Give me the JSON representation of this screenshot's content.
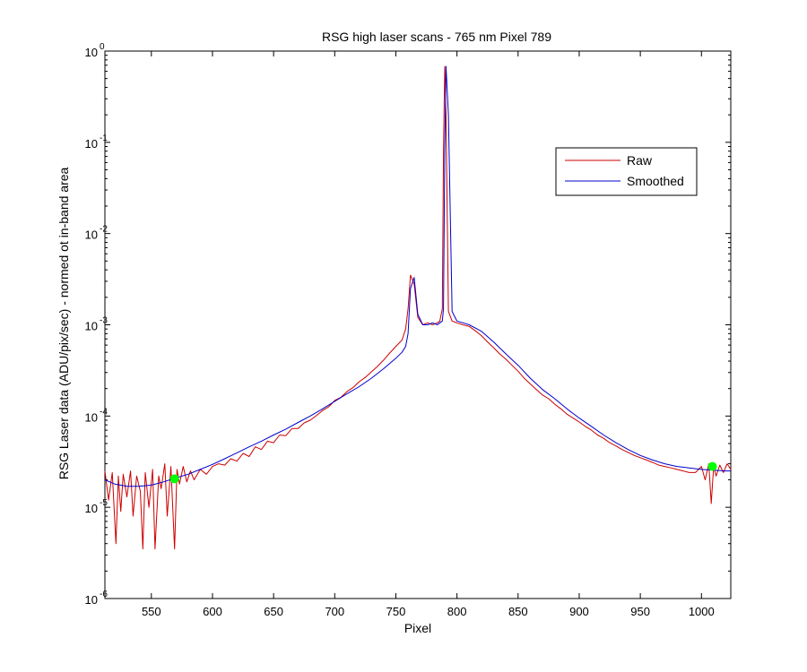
{
  "chart_data": {
    "type": "line",
    "title": "RSG high laser scans  - 765 nm    Pixel 789",
    "xlabel": "Pixel",
    "ylabel": "RSG Laser data (ADU/pix/sec) - normed ot in-band area",
    "xlim": [
      512,
      1024
    ],
    "ylim": [
      1e-06,
      1
    ],
    "yscale": "log",
    "grid": false,
    "legend_position": "top-right",
    "x_ticks": [
      550,
      600,
      650,
      700,
      750,
      800,
      850,
      900,
      950,
      1000
    ],
    "y_ticks": [
      {
        "value": 1e-06,
        "base": "10",
        "exp": "-6"
      },
      {
        "value": 1e-05,
        "base": "10",
        "exp": "-5"
      },
      {
        "value": 0.0001,
        "base": "10",
        "exp": "-4"
      },
      {
        "value": 0.001,
        "base": "10",
        "exp": "-3"
      },
      {
        "value": 0.01,
        "base": "10",
        "exp": "-2"
      },
      {
        "value": 0.1,
        "base": "10",
        "exp": "-1"
      },
      {
        "value": 1,
        "base": "10",
        "exp": "0"
      }
    ],
    "series": [
      {
        "name": "Raw",
        "color": "#cc0000",
        "x": [
          512,
          515,
          518,
          521,
          523,
          525,
          527,
          530,
          533,
          535,
          538,
          541,
          543,
          545,
          548,
          551,
          553,
          556,
          558,
          561,
          563,
          566,
          569,
          571,
          573,
          576,
          579,
          582,
          585,
          590,
          595,
          600,
          605,
          610,
          615,
          620,
          625,
          630,
          635,
          640,
          645,
          650,
          655,
          660,
          665,
          670,
          675,
          680,
          685,
          690,
          695,
          700,
          705,
          710,
          715,
          720,
          725,
          730,
          735,
          740,
          745,
          750,
          755,
          758,
          760,
          762,
          765,
          768,
          772,
          776,
          780,
          784,
          786,
          788,
          789,
          790,
          791,
          793,
          796,
          800,
          805,
          810,
          815,
          820,
          825,
          830,
          835,
          840,
          845,
          850,
          855,
          860,
          865,
          870,
          875,
          880,
          885,
          890,
          895,
          900,
          905,
          910,
          915,
          920,
          925,
          930,
          935,
          940,
          945,
          950,
          955,
          960,
          965,
          970,
          975,
          980,
          985,
          990,
          995,
          1000,
          1003,
          1006,
          1008,
          1010,
          1012,
          1015,
          1018,
          1021,
          1024
        ],
        "y": [
          2.5e-05,
          1.2e-05,
          2.4e-05,
          4e-06,
          2.2e-05,
          9e-06,
          2.3e-05,
          1.3e-05,
          2.5e-05,
          8e-06,
          2.2e-05,
          1.5e-05,
          3.5e-06,
          2.4e-05,
          1e-05,
          2.6e-05,
          3.5e-06,
          2.2e-05,
          1.6e-05,
          3e-05,
          8e-06,
          2.8e-05,
          3.5e-06,
          2.6e-05,
          1.8e-05,
          2.8e-05,
          1.9e-05,
          2.5e-05,
          2e-05,
          2.6e-05,
          2.3e-05,
          2.8e-05,
          3e-05,
          2.9e-05,
          3.4e-05,
          3.2e-05,
          3.9e-05,
          3.6e-05,
          4.6e-05,
          4.3e-05,
          5.3e-05,
          5.1e-05,
          6.2e-05,
          6.1e-05,
          7.3e-05,
          7.3e-05,
          8.4e-05,
          9e-05,
          0.000101,
          0.000115,
          0.000126,
          0.000148,
          0.00016,
          0.000185,
          0.000205,
          0.000238,
          0.000265,
          0.000305,
          0.00035,
          0.00041,
          0.00049,
          0.00058,
          0.00068,
          0.0009,
          0.0015,
          0.0035,
          0.0028,
          0.0012,
          0.001,
          0.00105,
          0.001,
          0.00105,
          0.0011,
          0.0015,
          0.08,
          0.68,
          0.2,
          0.0014,
          0.0011,
          0.00105,
          0.001,
          0.00096,
          0.00086,
          0.00076,
          0.00065,
          0.00056,
          0.00048,
          0.00042,
          0.00036,
          0.00031,
          0.00026,
          0.000225,
          0.000195,
          0.00017,
          0.000155,
          0.000135,
          0.00012,
          0.000105,
          9.5e-05,
          8.6e-05,
          7.7e-05,
          7e-05,
          6.2e-05,
          5.7e-05,
          5.1e-05,
          4.7e-05,
          4.3e-05,
          4e-05,
          3.7e-05,
          3.5e-05,
          3.3e-05,
          3.1e-05,
          2.9e-05,
          2.8e-05,
          2.7e-05,
          2.6e-05,
          2.5e-05,
          2.4e-05,
          2.4e-05,
          2.8e-05,
          2e-05,
          3e-05,
          1.1e-05,
          2.8e-05,
          2.2e-05,
          2.9e-05,
          2.4e-05,
          3e-05,
          2.6e-05
        ]
      },
      {
        "name": "Smoothed",
        "color": "#0000cc",
        "x": [
          512,
          520,
          530,
          540,
          550,
          560,
          570,
          580,
          590,
          600,
          610,
          620,
          630,
          640,
          650,
          660,
          670,
          680,
          690,
          700,
          710,
          720,
          730,
          740,
          750,
          755,
          758,
          760,
          762,
          765,
          768,
          772,
          776,
          780,
          784,
          786,
          788,
          789,
          790,
          791,
          793,
          796,
          800,
          805,
          810,
          820,
          830,
          840,
          850,
          860,
          870,
          880,
          890,
          900,
          910,
          920,
          930,
          940,
          950,
          960,
          970,
          980,
          990,
          1000,
          1010,
          1020,
          1024
        ],
        "y": [
          2e-05,
          1.8e-05,
          1.7e-05,
          1.7e-05,
          1.75e-05,
          1.9e-05,
          2.1e-05,
          2.3e-05,
          2.6e-05,
          2.95e-05,
          3.4e-05,
          3.95e-05,
          4.6e-05,
          5.3e-05,
          6.2e-05,
          7.2e-05,
          8.5e-05,
          0.0001,
          0.00012,
          0.000145,
          0.000175,
          0.00021,
          0.00026,
          0.00033,
          0.00043,
          0.0005,
          0.00058,
          0.0008,
          0.0025,
          0.0033,
          0.0013,
          0.001,
          0.001,
          0.00105,
          0.001,
          0.00105,
          0.0011,
          0.0015,
          0.08,
          0.68,
          0.2,
          0.0014,
          0.0011,
          0.00105,
          0.001,
          0.00085,
          0.00065,
          0.00048,
          0.00036,
          0.00026,
          0.000195,
          0.000155,
          0.00012,
          9.5e-05,
          7.7e-05,
          6.2e-05,
          5.1e-05,
          4.3e-05,
          3.7e-05,
          3.3e-05,
          3e-05,
          2.8e-05,
          2.7e-05,
          2.6e-05,
          2.55e-05,
          2.5e-05,
          2.5e-05
        ]
      }
    ],
    "markers": [
      {
        "x": 569,
        "y": 2.05e-05,
        "color": "#00ff00"
      },
      {
        "x": 1009,
        "y": 2.8e-05,
        "color": "#00ff00"
      }
    ]
  }
}
